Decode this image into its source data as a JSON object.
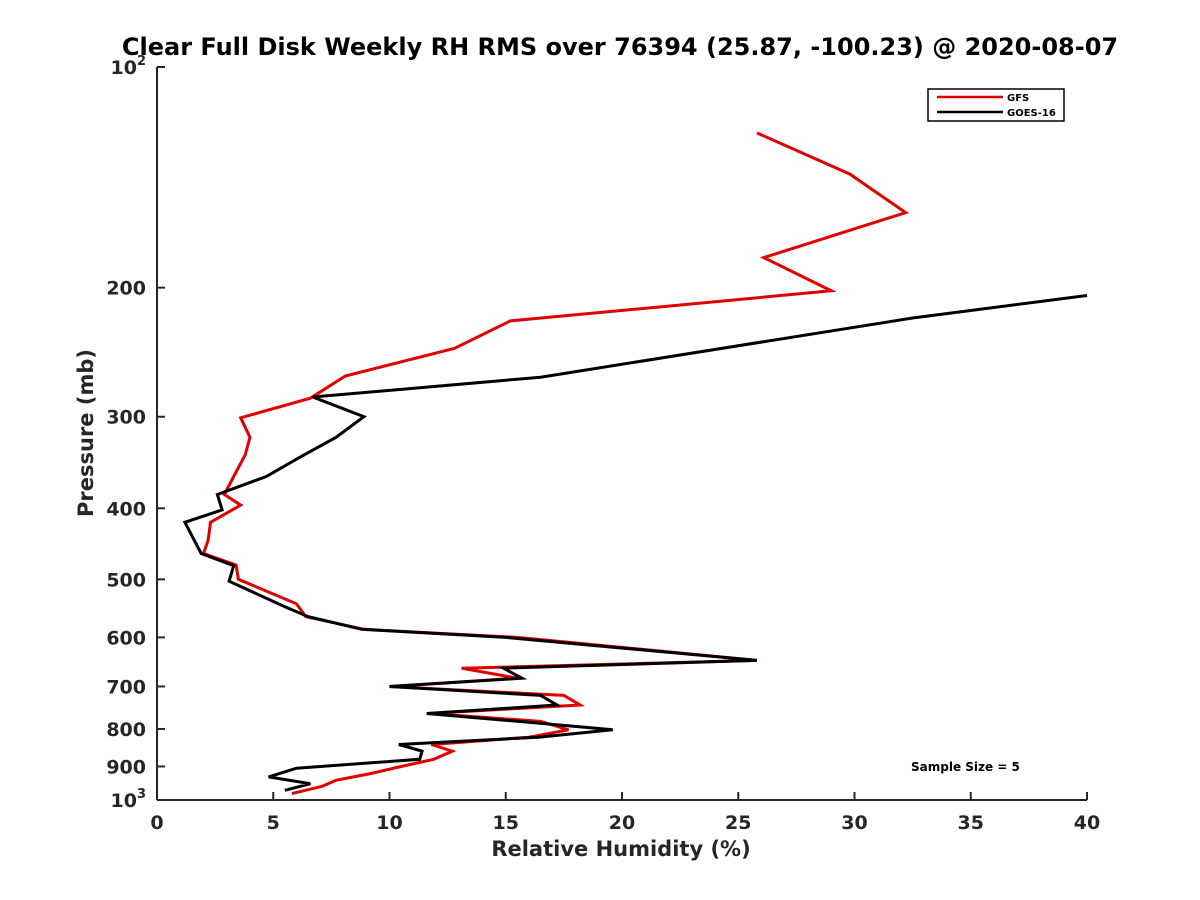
{
  "chart_data": {
    "type": "line",
    "title": "Clear Full Disk Weekly RH RMS over 76394 (25.87, -100.23) @ 2020-08-07",
    "xlabel": "Relative Humidity (%)",
    "ylabel": "Pressure (mb)",
    "xlim": [
      0,
      40
    ],
    "ylim": [
      100,
      1000
    ],
    "y_scale": "log",
    "y_reversed": true,
    "grid": false,
    "legend_position": "top-right",
    "annotation": "Sample Size = 5",
    "x_ticks": [
      {
        "value": 0,
        "label": "0"
      },
      {
        "value": 5,
        "label": "5"
      },
      {
        "value": 10,
        "label": "10"
      },
      {
        "value": 15,
        "label": "15"
      },
      {
        "value": 20,
        "label": "20"
      },
      {
        "value": 25,
        "label": "25"
      },
      {
        "value": 30,
        "label": "30"
      },
      {
        "value": 35,
        "label": "35"
      },
      {
        "value": 40,
        "label": "40"
      }
    ],
    "y_ticks": [
      {
        "value": 100,
        "label": "",
        "base": "10",
        "exp": "2"
      },
      {
        "value": 200,
        "label": "200"
      },
      {
        "value": 300,
        "label": "300"
      },
      {
        "value": 400,
        "label": "400"
      },
      {
        "value": 500,
        "label": "500"
      },
      {
        "value": 600,
        "label": "600"
      },
      {
        "value": 700,
        "label": "700"
      },
      {
        "value": 800,
        "label": "800"
      },
      {
        "value": 900,
        "label": "900"
      },
      {
        "value": 1000,
        "label": "",
        "base": "10",
        "exp": "3"
      }
    ],
    "series": [
      {
        "name": "GFS",
        "color": "#e00000",
        "points": [
          [
            25.8,
            123
          ],
          [
            29.8,
            140
          ],
          [
            32.2,
            158
          ],
          [
            26.1,
            182
          ],
          [
            29.0,
            202
          ],
          [
            15.2,
            222
          ],
          [
            12.8,
            242
          ],
          [
            8.1,
            264
          ],
          [
            6.6,
            283
          ],
          [
            3.6,
            301
          ],
          [
            4.0,
            320
          ],
          [
            3.8,
            338
          ],
          [
            3.3,
            362
          ],
          [
            2.9,
            383
          ],
          [
            3.6,
            396
          ],
          [
            2.3,
            418
          ],
          [
            2.2,
            442
          ],
          [
            2.0,
            461
          ],
          [
            3.4,
            478
          ],
          [
            3.5,
            500
          ],
          [
            6.0,
            540
          ],
          [
            6.4,
            562
          ],
          [
            8.9,
            585
          ],
          [
            15.5,
            600
          ],
          [
            25.8,
            645
          ],
          [
            13.1,
            661
          ],
          [
            15.5,
            682
          ],
          [
            10.0,
            700
          ],
          [
            17.5,
            720
          ],
          [
            18.2,
            742
          ],
          [
            11.7,
            762
          ],
          [
            16.5,
            781
          ],
          [
            17.7,
            802
          ],
          [
            16.0,
            821
          ],
          [
            11.8,
            840
          ],
          [
            12.7,
            858
          ],
          [
            11.9,
            880
          ],
          [
            10.5,
            900
          ],
          [
            9.2,
            920
          ],
          [
            7.7,
            940
          ],
          [
            7.1,
            958
          ],
          [
            5.8,
            980
          ]
        ]
      },
      {
        "name": "GOES-16",
        "color": "#000000",
        "points": [
          [
            40.0,
            205
          ],
          [
            32.5,
            220
          ],
          [
            16.5,
            265
          ],
          [
            6.7,
            282
          ],
          [
            8.9,
            300
          ],
          [
            7.7,
            320
          ],
          [
            6.2,
            340
          ],
          [
            4.7,
            362
          ],
          [
            2.6,
            383
          ],
          [
            2.8,
            402
          ],
          [
            1.2,
            418
          ],
          [
            1.9,
            461
          ],
          [
            3.3,
            479
          ],
          [
            3.1,
            503
          ],
          [
            5.5,
            545
          ],
          [
            6.5,
            562
          ],
          [
            8.8,
            585
          ],
          [
            15.0,
            600
          ],
          [
            25.8,
            645
          ],
          [
            14.9,
            661
          ],
          [
            15.7,
            682
          ],
          [
            10.0,
            700
          ],
          [
            16.5,
            720
          ],
          [
            17.2,
            742
          ],
          [
            11.6,
            762
          ],
          [
            15.5,
            781
          ],
          [
            19.6,
            802
          ],
          [
            16.4,
            821
          ],
          [
            10.4,
            840
          ],
          [
            11.4,
            858
          ],
          [
            11.3,
            880
          ],
          [
            6.0,
            905
          ],
          [
            4.8,
            930
          ],
          [
            6.6,
            950
          ],
          [
            5.5,
            970
          ]
        ]
      }
    ]
  }
}
